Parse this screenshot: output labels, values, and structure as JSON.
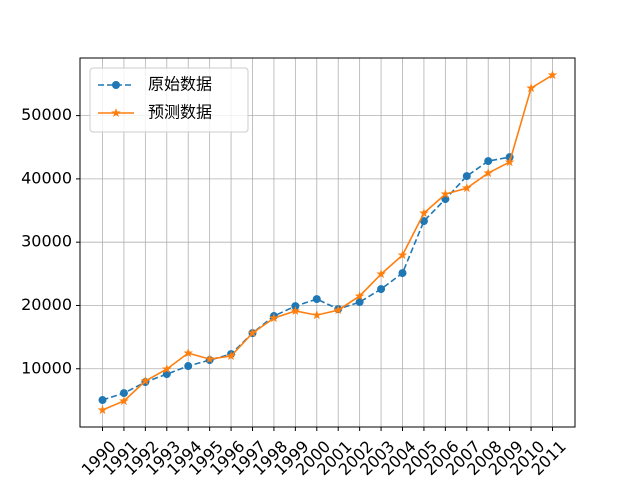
{
  "chart_data": {
    "type": "line",
    "x": [
      1990,
      1991,
      1992,
      1993,
      1994,
      1995,
      1996,
      1997,
      1998,
      1999,
      2000,
      2001,
      2002,
      2003,
      2004,
      2005,
      2006,
      2007,
      2008,
      2009,
      2010,
      2011
    ],
    "series": [
      {
        "name": "原始数据",
        "color": "#1f77b4",
        "dash": "dashed",
        "marker": "circle",
        "values": [
          5060,
          6160,
          7900,
          9160,
          10430,
          11370,
          12320,
          15640,
          18330,
          19900,
          21010,
          19430,
          20540,
          22590,
          25120,
          33330,
          36810,
          40440,
          42810,
          43440,
          null,
          null
        ]
      },
      {
        "name": "预测数据",
        "color": "#ff7f0e",
        "dash": "solid",
        "marker": "star",
        "values": [
          3480,
          4900,
          8060,
          9950,
          12480,
          11530,
          12010,
          15640,
          18010,
          19120,
          18480,
          19270,
          21480,
          24960,
          27960,
          34600,
          37600,
          38550,
          40920,
          42650,
          54340,
          56400
        ]
      }
    ],
    "xlim": [
      1988.95,
      2012.05
    ],
    "xticks": [
      1990,
      1991,
      1992,
      1993,
      1994,
      1995,
      1996,
      1997,
      1998,
      1999,
      2000,
      2001,
      2002,
      2003,
      2004,
      2005,
      2006,
      2007,
      2008,
      2009,
      2010,
      2011
    ],
    "ylim": [
      800,
      59100
    ],
    "yticks": [
      10000,
      20000,
      30000,
      40000,
      50000
    ],
    "grid": true,
    "legend": "upper left"
  }
}
